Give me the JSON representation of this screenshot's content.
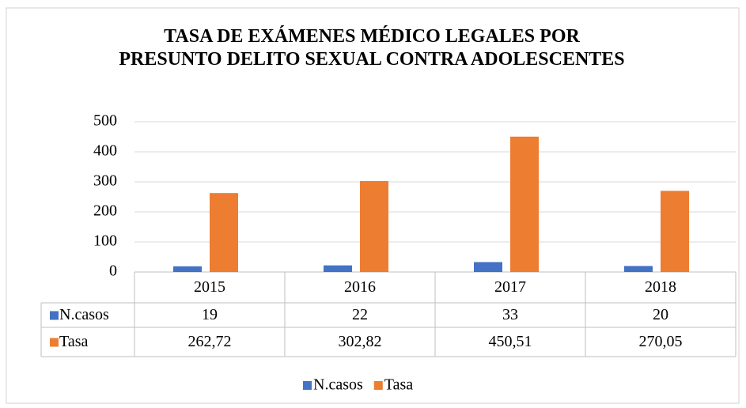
{
  "chart_data": {
    "type": "bar",
    "title": "TASA DE EXÁMENES MÉDICO LEGALES POR PRESUNTO DELITO SEXUAL CONTRA ADOLESCENTES",
    "categories": [
      "2015",
      "2016",
      "2017",
      "2018"
    ],
    "series": [
      {
        "name": "N.casos",
        "color": "#4472c4",
        "values": [
          19,
          22,
          33,
          20
        ]
      },
      {
        "name": "Tasa",
        "color": "#ed7d31",
        "values": [
          262.72,
          302.82,
          450.51,
          270.05
        ],
        "value_labels": [
          "262,72",
          "302,82",
          "450,51",
          "270,05"
        ]
      }
    ],
    "ylim": [
      0,
      500
    ],
    "yticks": [
      0,
      100,
      200,
      300,
      400,
      500
    ],
    "grid": true,
    "legend": "bottom"
  }
}
